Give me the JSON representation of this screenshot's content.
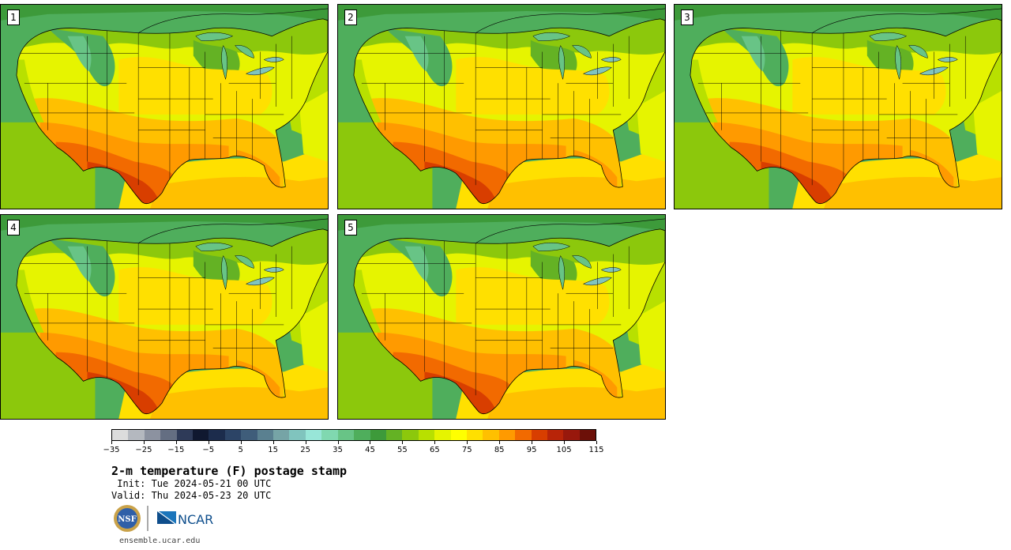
{
  "stamps": [
    {
      "label": "1"
    },
    {
      "label": "2"
    },
    {
      "label": "3"
    },
    {
      "label": "4"
    },
    {
      "label": "5"
    }
  ],
  "colorbar": {
    "colors": [
      "#dcdcdc",
      "#b4b8bf",
      "#8c92a0",
      "#646e82",
      "#2e3a58",
      "#101830",
      "#1c2c4c",
      "#2c4466",
      "#3f5d7a",
      "#5a8090",
      "#76a4a6",
      "#80c4be",
      "#98e6d8",
      "#80d8b0",
      "#68c486",
      "#4fae5c",
      "#3d9a3a",
      "#64b224",
      "#8cc80c",
      "#b8e000",
      "#e6f400",
      "#ffff00",
      "#ffe000",
      "#ffc000",
      "#ff9a00",
      "#f26a00",
      "#d83e00",
      "#b82408",
      "#98180c",
      "#6c1008"
    ],
    "tick_labels": [
      "−35",
      "−25",
      "−15",
      "−5",
      "5",
      "15",
      "25",
      "35",
      "45",
      "55",
      "65",
      "75",
      "85",
      "95",
      "105",
      "115"
    ],
    "tick_values": [
      -35,
      -25,
      -15,
      -5,
      5,
      15,
      25,
      35,
      45,
      55,
      65,
      75,
      85,
      95,
      105,
      115
    ],
    "range": [
      -40,
      110
    ]
  },
  "title": "2-m temperature (F) postage stamp",
  "init": " Init: Tue 2024-05-21 00 UTC",
  "valid": "Valid: Thu 2024-05-23 20 UTC",
  "logos": {
    "nsf": "NSF",
    "ncar": "NCAR"
  },
  "site": "ensemble.ucar.edu"
}
